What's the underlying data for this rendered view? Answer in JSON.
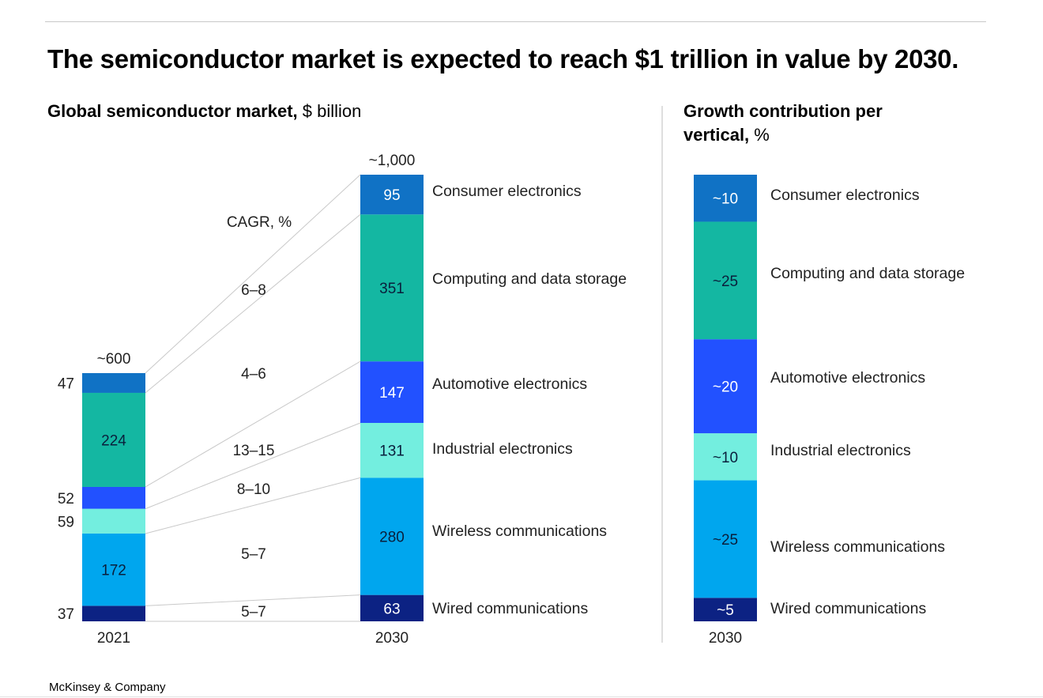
{
  "title": "The semiconductor market is expected to reach $1 trillion in value by 2030.",
  "left_panel": {
    "subtitle_bold": "Global semiconductor market,",
    "subtitle_unit": "$ billion"
  },
  "right_panel": {
    "subtitle_bold_line1": "Growth contribution per",
    "subtitle_bold_line2": "vertical,",
    "subtitle_unit": "%"
  },
  "footer": "McKinsey & Company",
  "colors": {
    "consumer": "#1072c5",
    "computing": "#14b7a2",
    "automotive": "#2251ff",
    "industrial": "#73eedf",
    "wireless": "#00a6ee",
    "wired": "#0c2283"
  },
  "chart_data": [
    {
      "type": "stacked-bar",
      "categories": [
        "2021",
        "2030"
      ],
      "totals": [
        "~600",
        "~1,000"
      ],
      "cagr_header": "CAGR, %",
      "segments": [
        {
          "name": "Wired communications",
          "key": "wired",
          "values": [
            37,
            63
          ],
          "labels": [
            "37",
            "63"
          ],
          "cagr": "5–7",
          "light_text": true
        },
        {
          "name": "Wireless communications",
          "key": "wireless",
          "values": [
            172,
            280
          ],
          "labels": [
            "172",
            "280"
          ],
          "cagr": "5–7",
          "light_text": false
        },
        {
          "name": "Industrial electronics",
          "key": "industrial",
          "values": [
            59,
            131
          ],
          "labels": [
            "59",
            "131"
          ],
          "cagr": "8–10",
          "light_text": false
        },
        {
          "name": "Automotive electronics",
          "key": "automotive",
          "values": [
            52,
            147
          ],
          "labels": [
            "52",
            "147"
          ],
          "cagr": "13–15",
          "light_text": true
        },
        {
          "name": "Computing and data storage",
          "key": "computing",
          "values": [
            224,
            351
          ],
          "labels": [
            "224",
            "351"
          ],
          "cagr": "4–6",
          "light_text": false
        },
        {
          "name": "Consumer electronics",
          "key": "consumer",
          "values": [
            47,
            95
          ],
          "labels": [
            "47",
            "95"
          ],
          "cagr": "6–8",
          "light_text": true
        }
      ]
    },
    {
      "type": "stacked-bar",
      "categories": [
        "2030"
      ],
      "unit": "%",
      "segments": [
        {
          "name": "Wired communications",
          "key": "wired",
          "value": 5,
          "label": "~5",
          "light_text": true
        },
        {
          "name": "Wireless communications",
          "key": "wireless",
          "value": 25,
          "label": "~25",
          "light_text": false
        },
        {
          "name": "Industrial electronics",
          "key": "industrial",
          "value": 10,
          "label": "~10",
          "light_text": false
        },
        {
          "name": "Automotive electronics",
          "key": "automotive",
          "value": 20,
          "label": "~20",
          "light_text": true
        },
        {
          "name": "Computing and data storage",
          "key": "computing",
          "value": 25,
          "label": "~25",
          "light_text": false
        },
        {
          "name": "Consumer electronics",
          "key": "consumer",
          "value": 10,
          "label": "~10",
          "light_text": true
        }
      ]
    }
  ]
}
